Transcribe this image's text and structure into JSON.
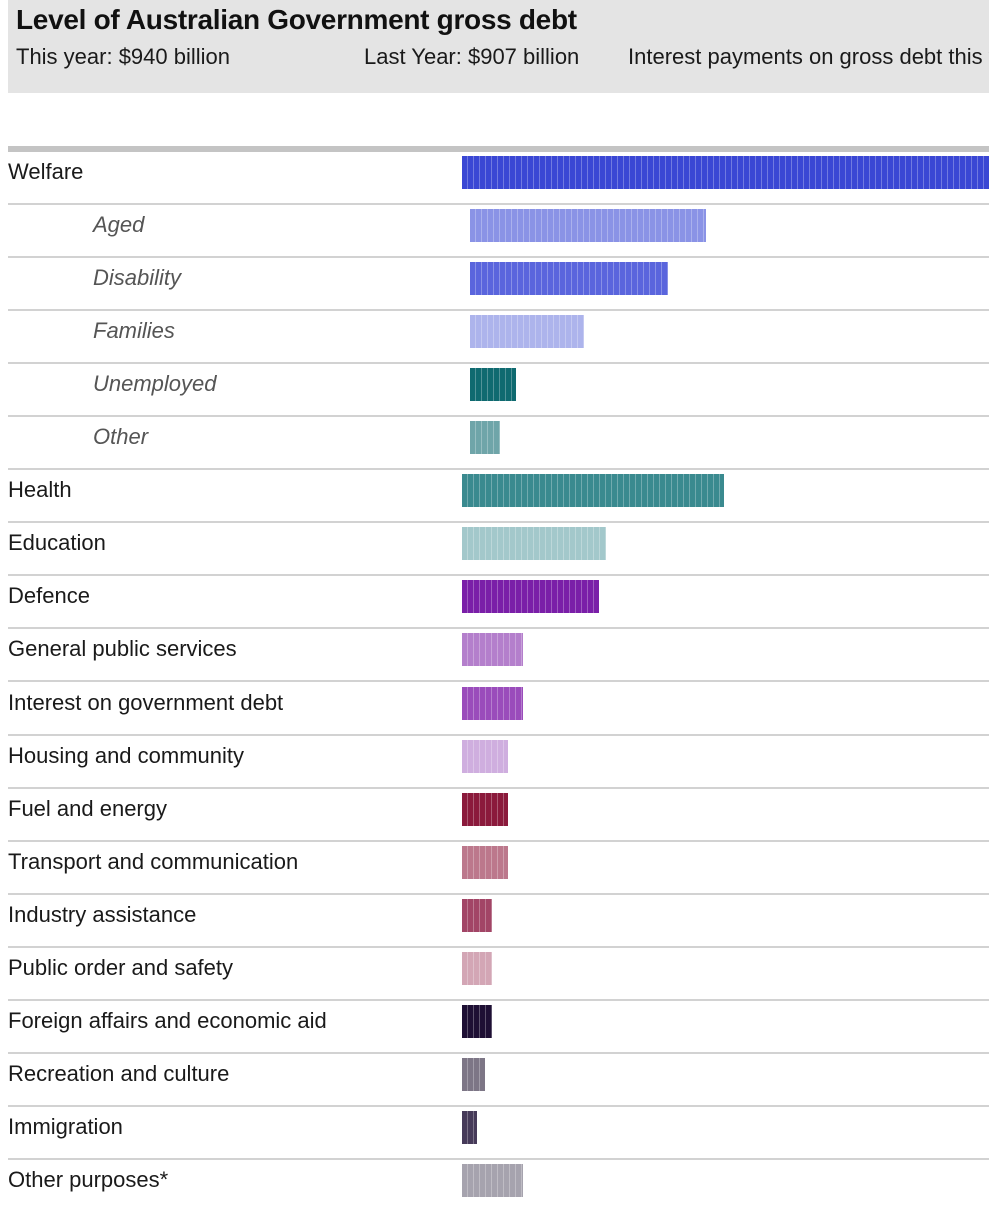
{
  "header": {
    "title": "Level of Australian Government gross debt",
    "this_year": "This year: $940 billion",
    "last_year": "Last Year: $907 billion",
    "interest": "Interest payments on gross debt this y"
  },
  "chart_data": {
    "type": "bar",
    "orientation": "horizontal",
    "value_axis_labels": "none",
    "categories": [
      "Welfare",
      "Aged",
      "Disability",
      "Families",
      "Unemployed",
      "Other",
      "Health",
      "Education",
      "Defence",
      "General public services",
      "Interest on government debt",
      "Housing and community",
      "Fuel and energy",
      "Transport and communication",
      "Industry assistance",
      "Public order and safety",
      "Foreign affairs and economic aid",
      "Recreation and culture",
      "Immigration",
      "Other purposes*"
    ],
    "values": [
      69.5,
      31,
      26,
      15,
      6,
      4,
      34.5,
      19,
      18,
      8,
      8,
      6,
      6,
      6,
      4,
      4,
      4,
      3,
      2,
      8
    ],
    "subcategory": [
      false,
      true,
      true,
      true,
      true,
      true,
      false,
      false,
      false,
      false,
      false,
      false,
      false,
      false,
      false,
      false,
      false,
      false,
      false,
      false
    ],
    "colors": [
      "#3a47d4",
      "#8a93e6",
      "#5a65dd",
      "#adb4ec",
      "#0f6a70",
      "#6fa5a9",
      "#3a8a8f",
      "#a3c8cb",
      "#7a1fa8",
      "#b47fcc",
      "#9a4cbb",
      "#cfaedf",
      "#8b1a3c",
      "#bc788c",
      "#a24566",
      "#d3a6b5",
      "#1e0f34",
      "#7d7686",
      "#463a59",
      "#a6a3ae"
    ]
  }
}
